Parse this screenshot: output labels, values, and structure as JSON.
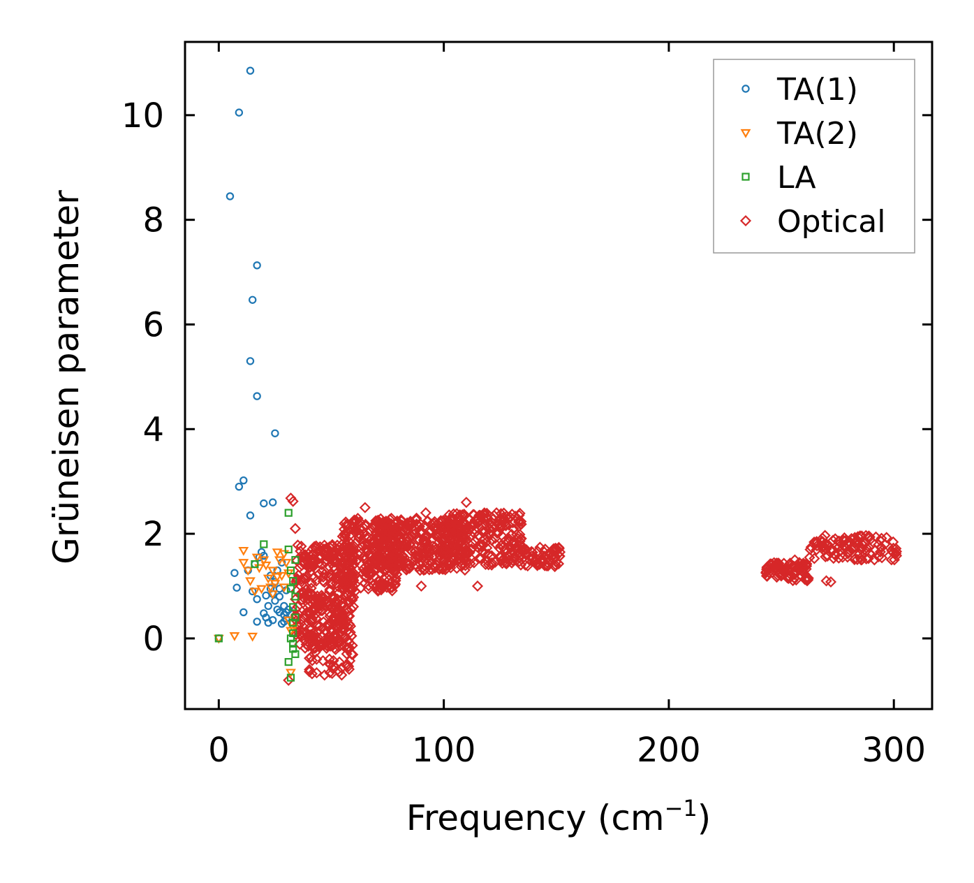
{
  "chart_data": {
    "type": "scatter",
    "xlabel": "Frequency (cm",
    "xlabel_sup": "−1",
    "xlabel_close": ")",
    "ylabel": "Grüneisen parameter",
    "xlim": [
      -15,
      317
    ],
    "ylim": [
      -1.35,
      11.4
    ],
    "xticks": [
      0,
      100,
      200,
      300
    ],
    "yticks": [
      0,
      2,
      4,
      6,
      8,
      10
    ],
    "legend_position": "top-right",
    "series": [
      {
        "name": "TA(1)",
        "marker": "circle",
        "color": "#1f77b4",
        "points": [
          [
            0,
            0
          ],
          [
            5,
            8.45
          ],
          [
            9,
            10.05
          ],
          [
            14,
            10.85
          ],
          [
            15,
            6.47
          ],
          [
            17,
            7.13
          ],
          [
            14,
            5.3
          ],
          [
            17,
            4.63
          ],
          [
            25,
            3.92
          ],
          [
            9,
            2.9
          ],
          [
            11,
            3.02
          ],
          [
            20,
            2.58
          ],
          [
            24,
            2.6
          ],
          [
            14,
            2.35
          ],
          [
            7,
            1.25
          ],
          [
            8,
            0.97
          ],
          [
            11,
            0.5
          ],
          [
            13,
            1.3
          ],
          [
            15,
            0.9
          ],
          [
            16,
            1.42
          ],
          [
            17,
            0.75
          ],
          [
            18,
            1.55
          ],
          [
            19,
            1.65
          ],
          [
            20,
            1.58
          ],
          [
            21,
            0.82
          ],
          [
            22,
            0.62
          ],
          [
            23,
            0.95
          ],
          [
            24,
            0.35
          ],
          [
            25,
            1.08
          ],
          [
            26,
            0.55
          ],
          [
            27,
            0.8
          ],
          [
            28,
            1.45
          ],
          [
            29,
            0.45
          ],
          [
            30,
            0.38
          ],
          [
            20,
            0.48
          ],
          [
            22,
            0.3
          ],
          [
            17,
            0.32
          ],
          [
            25,
            0.72
          ],
          [
            27,
            0.5
          ],
          [
            28,
            0.28
          ],
          [
            29,
            0.62
          ],
          [
            30,
            0.92
          ],
          [
            31,
            0.55
          ],
          [
            26,
            1.3
          ],
          [
            23,
            1.2
          ],
          [
            21,
            0.4
          ],
          [
            24,
            0.85
          ],
          [
            27,
            0.95
          ],
          [
            29,
            0.32
          ],
          [
            30,
            0.5
          ]
        ]
      },
      {
        "name": "TA(2)",
        "marker": "triangle-down",
        "color": "#ff7f0e",
        "points": [
          [
            0,
            0
          ],
          [
            7,
            0.05
          ],
          [
            11,
            1.68
          ],
          [
            11,
            1.45
          ],
          [
            13,
            1.3
          ],
          [
            14,
            1.1
          ],
          [
            16,
            0.9
          ],
          [
            17,
            1.55
          ],
          [
            18,
            1.35
          ],
          [
            19,
            0.95
          ],
          [
            20,
            1.5
          ],
          [
            21,
            1.4
          ],
          [
            22,
            1.15
          ],
          [
            23,
            0.98
          ],
          [
            24,
            1.3
          ],
          [
            25,
            1.05
          ],
          [
            26,
            1.65
          ],
          [
            27,
            1.5
          ],
          [
            28,
            1.2
          ],
          [
            29,
            1.62
          ],
          [
            30,
            1.45
          ],
          [
            31,
            0.35
          ],
          [
            32,
            0.15
          ],
          [
            33,
            0.2
          ],
          [
            24,
            0.85
          ],
          [
            26,
            1.18
          ],
          [
            29,
            0.98
          ],
          [
            31,
            1.25
          ],
          [
            15,
            0.04
          ],
          [
            32,
            -0.65
          ]
        ]
      },
      {
        "name": "LA",
        "marker": "square",
        "color": "#2ca02c",
        "points": [
          [
            0,
            0
          ],
          [
            16,
            1.42
          ],
          [
            20,
            1.8
          ],
          [
            31,
            2.4
          ],
          [
            31,
            1.7
          ],
          [
            32,
            1.3
          ],
          [
            32,
            0.95
          ],
          [
            33,
            0.6
          ],
          [
            33,
            0.3
          ],
          [
            33,
            0.1
          ],
          [
            33,
            -0.1
          ],
          [
            34,
            -0.3
          ],
          [
            31,
            -0.45
          ],
          [
            32,
            -0.75
          ],
          [
            33,
            1.1
          ],
          [
            34,
            0.8
          ],
          [
            34,
            1.5
          ],
          [
            32,
            0.0
          ],
          [
            33,
            -0.2
          ],
          [
            34,
            0.4
          ]
        ]
      },
      {
        "name": "Optical",
        "marker": "diamond",
        "color": "#d62728",
        "clusters": [
          {
            "x": [
              34,
              60
            ],
            "y": [
              -0.2,
              1.8
            ],
            "count": 360
          },
          {
            "x": [
              40,
              60
            ],
            "y": [
              -0.7,
              0.3
            ],
            "count": 60
          },
          {
            "x": [
              55,
              80
            ],
            "y": [
              0.9,
              2.3
            ],
            "count": 260
          },
          {
            "x": [
              70,
              110
            ],
            "y": [
              1.3,
              2.3
            ],
            "count": 320
          },
          {
            "x": [
              100,
              135
            ],
            "y": [
              1.4,
              2.4
            ],
            "count": 240
          },
          {
            "x": [
              135,
              152
            ],
            "y": [
              1.35,
              1.75
            ],
            "count": 60
          },
          {
            "x": [
              243,
              262
            ],
            "y": [
              1.1,
              1.45
            ],
            "count": 90
          },
          {
            "x": [
              262,
              302
            ],
            "y": [
              1.5,
              1.97
            ],
            "count": 110
          }
        ],
        "points": [
          [
            32,
            2.68
          ],
          [
            33,
            2.62
          ],
          [
            31,
            -0.8
          ],
          [
            34,
            2.1
          ],
          [
            47,
            -0.7
          ],
          [
            65,
            2.5
          ],
          [
            75,
            2.2
          ],
          [
            92,
            2.4
          ],
          [
            110,
            2.6
          ],
          [
            115,
            1.0
          ],
          [
            125,
            2.15
          ],
          [
            90,
            1.0
          ],
          [
            55,
            1.95
          ],
          [
            270,
            1.1
          ],
          [
            272,
            1.08
          ],
          [
            256,
            1.5
          ],
          [
            258,
            1.45
          ],
          [
            45,
            1.75
          ],
          [
            48,
            1.7
          ],
          [
            42,
            1.6
          ],
          [
            38,
            1.55
          ]
        ]
      }
    ]
  }
}
